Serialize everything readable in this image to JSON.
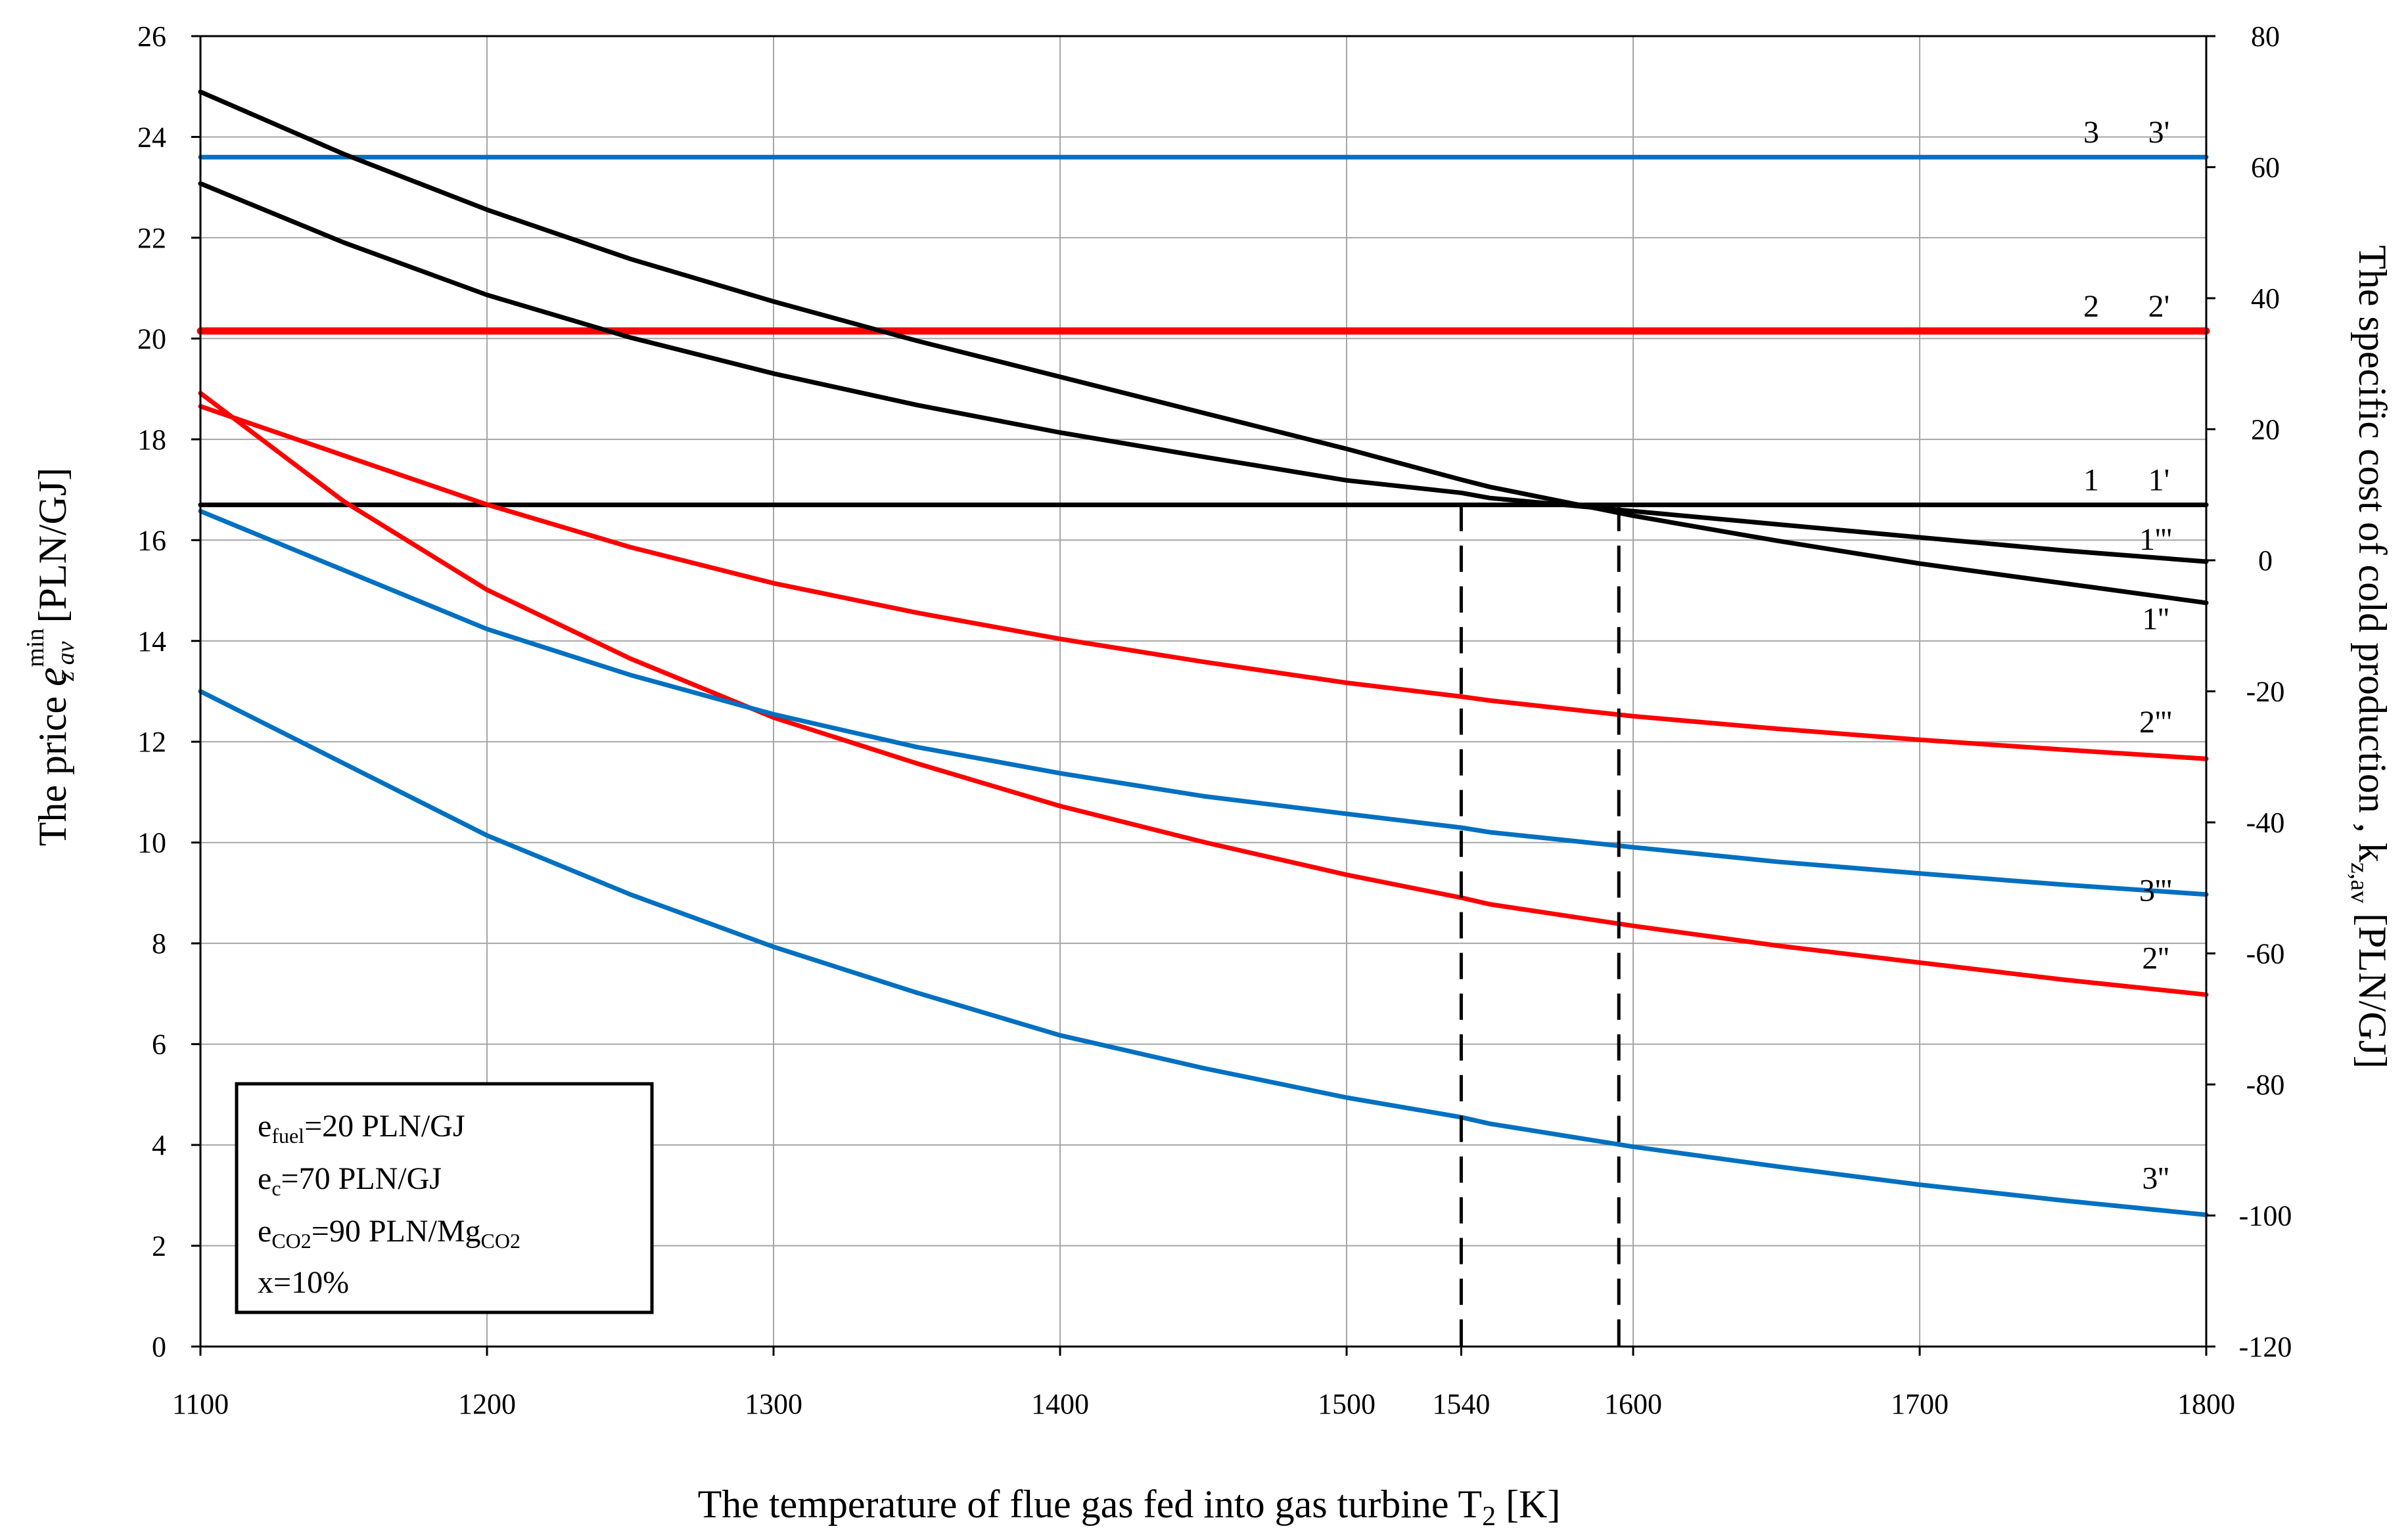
{
  "chart_data": {
    "type": "line",
    "xlabel": "The temperature of flue gas fed into gas turbine T",
    "xlabel_sub": "2",
    "xlabel_unit": " [K]",
    "ylabel_left": {
      "prefix": "The price",
      "symbol": "e",
      "sup": "min",
      "sub": "z av",
      "unit": "[PLN/GJ]"
    },
    "ylabel_right": {
      "prefix": "The specific cost of cold production , k",
      "sub": "z,av",
      "unit": "[PLN/GJ]"
    },
    "x_range": [
      1100,
      1800
    ],
    "y_left_range": [
      0,
      26
    ],
    "y_right_range": [
      -120,
      80
    ],
    "x_ticks": [
      "1100",
      "1200",
      "1300",
      "1400",
      "1500",
      "1540",
      "1600",
      "1700",
      "1800"
    ],
    "x_tick_values": [
      1100,
      1200,
      1300,
      1400,
      1500,
      1540,
      1600,
      1700,
      1800
    ],
    "x_grid_values": [
      1100,
      1200,
      1300,
      1400,
      1500,
      1600,
      1700,
      1800
    ],
    "y_left_ticks": [
      "0",
      "2",
      "4",
      "6",
      "8",
      "10",
      "12",
      "14",
      "16",
      "18",
      "20",
      "22",
      "24",
      "26"
    ],
    "y_left_tick_values": [
      0,
      2,
      4,
      6,
      8,
      10,
      12,
      14,
      16,
      18,
      20,
      22,
      24,
      26
    ],
    "y_right_ticks": [
      "-120",
      "-100",
      "-80",
      "-60",
      "-40",
      "-20",
      "0",
      "20",
      "40",
      "60",
      "80"
    ],
    "y_right_tick_values": [
      -120,
      -100,
      -80,
      -60,
      -40,
      -20,
      0,
      20,
      40,
      60,
      80
    ],
    "grid": true,
    "colors": {
      "black": "#000000",
      "red": "#ff0000",
      "blue": "#0070c0",
      "grid": "#a6a6a6"
    },
    "series": [
      {
        "name": "1 1'",
        "label_a": "1",
        "label_b": "1'",
        "axis": "left",
        "color": "black",
        "x": [
          1100,
          1800
        ],
        "y": [
          16.7,
          16.7
        ]
      },
      {
        "name": "2 2'",
        "label_a": "2",
        "label_b": "2'",
        "axis": "left",
        "color": "red",
        "x": [
          1100,
          1800
        ],
        "y": [
          20.15,
          20.15
        ]
      },
      {
        "name": "3 3'",
        "label_a": "3",
        "label_b": "3'",
        "axis": "left",
        "color": "blue",
        "x": [
          1100,
          1800
        ],
        "y": [
          23.6,
          23.6
        ]
      },
      {
        "name": "1''",
        "label": "1''",
        "axis": "right",
        "color": "black",
        "x": [
          1100,
          1150,
          1200,
          1250,
          1300,
          1350,
          1400,
          1450,
          1500,
          1540,
          1550,
          1600,
          1650,
          1700,
          1750,
          1800
        ],
        "y": [
          71.5,
          62,
          53.5,
          46,
          39.5,
          33.5,
          28,
          22.5,
          17,
          12.3,
          11.2,
          6.8,
          3,
          -0.5,
          -3.5,
          -6.5
        ]
      },
      {
        "name": "1'''",
        "label": "1'''",
        "axis": "right",
        "color": "black",
        "x": [
          1100,
          1150,
          1200,
          1250,
          1300,
          1350,
          1400,
          1450,
          1500,
          1540,
          1550,
          1600,
          1650,
          1700,
          1750,
          1800
        ],
        "y": [
          57.5,
          48.5,
          40.5,
          34,
          28.5,
          23.7,
          19.5,
          15.8,
          12.2,
          10.3,
          9.5,
          7.5,
          5.5,
          3.5,
          1.5,
          -0.2
        ]
      },
      {
        "name": "2''",
        "label": "2''",
        "axis": "right",
        "color": "red",
        "x": [
          1100,
          1150,
          1200,
          1250,
          1300,
          1350,
          1400,
          1450,
          1500,
          1540,
          1550,
          1600,
          1650,
          1700,
          1750,
          1800
        ],
        "y": [
          25.5,
          9,
          -4.5,
          -15,
          -24,
          -31,
          -37.5,
          -43,
          -48,
          -51.5,
          -52.5,
          -55.8,
          -58.8,
          -61.4,
          -64,
          -66.3
        ]
      },
      {
        "name": "2'''",
        "label": "2'''",
        "axis": "right",
        "color": "red",
        "x": [
          1100,
          1150,
          1200,
          1250,
          1300,
          1350,
          1400,
          1450,
          1500,
          1540,
          1550,
          1600,
          1650,
          1700,
          1750,
          1800
        ],
        "y": [
          23.5,
          16,
          8.5,
          2,
          -3.5,
          -8,
          -12,
          -15.5,
          -18.7,
          -20.8,
          -21.4,
          -23.8,
          -25.7,
          -27.4,
          -28.9,
          -30.3
        ]
      },
      {
        "name": "3''",
        "label": "3''",
        "axis": "right",
        "color": "blue",
        "x": [
          1100,
          1150,
          1200,
          1250,
          1300,
          1350,
          1400,
          1450,
          1500,
          1540,
          1550,
          1600,
          1650,
          1700,
          1750,
          1800
        ],
        "y": [
          -20,
          -31,
          -42,
          -51,
          -59,
          -66,
          -72.5,
          -77.5,
          -82,
          -85,
          -86,
          -89.5,
          -92.5,
          -95.3,
          -97.7,
          -99.9
        ]
      },
      {
        "name": "3'''",
        "label": "3'''",
        "axis": "right",
        "color": "blue",
        "x": [
          1100,
          1150,
          1200,
          1250,
          1300,
          1350,
          1400,
          1450,
          1500,
          1540,
          1550,
          1600,
          1650,
          1700,
          1750,
          1800
        ],
        "y": [
          7.5,
          -1.5,
          -10.5,
          -17.5,
          -23.5,
          -28.5,
          -32.5,
          -36,
          -38.7,
          -40.8,
          -41.5,
          -43.8,
          -46,
          -47.8,
          -49.5,
          -51
        ]
      }
    ],
    "vertical_markers": [
      {
        "x": 1540,
        "y_top": 16.7,
        "style": "dashed"
      },
      {
        "x": 1595,
        "y_top": 16.7,
        "style": "dashed"
      }
    ],
    "legend_box": {
      "lines": [
        {
          "main": "e",
          "sub": "fuel",
          "rest": "=20 PLN/GJ"
        },
        {
          "main": "e",
          "sub": "c",
          "rest": "=70 PLN/GJ"
        },
        {
          "main": "e",
          "sub": "CO2",
          "rest": "=90 PLN/Mg",
          "sub2": "CO2"
        },
        {
          "main": "x=10%"
        }
      ],
      "position": "bottom-left"
    }
  }
}
